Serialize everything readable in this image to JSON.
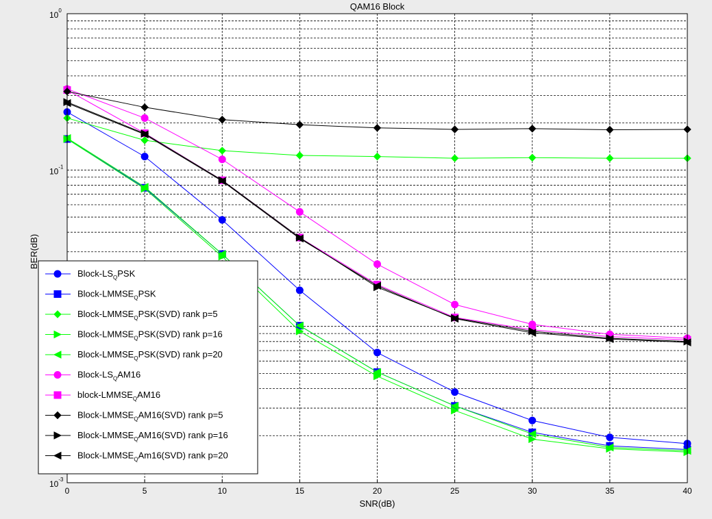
{
  "chart_data": {
    "type": "line",
    "title": "QAM16 Block",
    "xlabel": "SNR(dB)",
    "ylabel": "BER(dB)",
    "yscale": "log",
    "xlim": [
      0,
      40
    ],
    "ylim": [
      0.001,
      1
    ],
    "x_ticks": [
      "0",
      "5",
      "10",
      "15",
      "20",
      "25",
      "30",
      "35",
      "40"
    ],
    "y_ticks": [
      {
        "base": "10",
        "exp": "0"
      },
      {
        "base": "10",
        "exp": "-1"
      },
      {
        "base": "10",
        "exp": "-2"
      },
      {
        "base": "10",
        "exp": "-3"
      }
    ],
    "grid": true,
    "legend_position": "lower-left",
    "x": [
      0,
      5,
      10,
      15,
      20,
      25,
      30,
      35,
      40
    ],
    "series": [
      {
        "label_parts": [
          "Block-LS",
          "Q",
          "PSK"
        ],
        "color": "#0000ff",
        "marker": "circle",
        "values": [
          0.235,
          0.122,
          0.048,
          0.017,
          0.0068,
          0.0038,
          0.0025,
          0.00195,
          0.00178
        ]
      },
      {
        "label_parts": [
          "Block-LMMSE",
          "Q",
          "PSK"
        ],
        "color": "#0000ff",
        "marker": "square",
        "values": [
          0.158,
          0.077,
          0.029,
          0.0101,
          0.0051,
          0.0031,
          0.0021,
          0.00172,
          0.00163
        ]
      },
      {
        "label_parts": [
          "Block-LMMSE",
          "Q",
          "PSK(SVD) rank p=5"
        ],
        "color": "#00ff00",
        "marker": "diamond",
        "values": [
          0.215,
          0.155,
          0.133,
          0.124,
          0.122,
          0.119,
          0.12,
          0.119,
          0.119
        ]
      },
      {
        "label_parts": [
          "Block-LMMSE",
          "Q",
          "PSK(SVD) rank p=16"
        ],
        "color": "#00ff00",
        "marker": "triangle-right",
        "values": [
          0.158,
          0.076,
          0.028,
          0.0093,
          0.0048,
          0.0029,
          0.0019,
          0.00165,
          0.00157
        ]
      },
      {
        "label_parts": [
          "Block-LMMSE",
          "Q",
          "PSK(SVD) rank p=20"
        ],
        "color": "#00ff00",
        "marker": "triangle-left",
        "values": [
          0.16,
          0.078,
          0.029,
          0.0101,
          0.0051,
          0.0031,
          0.00205,
          0.00168,
          0.0016
        ]
      },
      {
        "label_parts": [
          "Block-LS",
          "Q",
          "AM16"
        ],
        "color": "#ff00ff",
        "marker": "circle",
        "values": [
          0.33,
          0.215,
          0.117,
          0.054,
          0.025,
          0.0138,
          0.0103,
          0.0089,
          0.0084
        ]
      },
      {
        "label_parts": [
          "block-LMMSE",
          "Q",
          "AM16"
        ],
        "color": "#ff00ff",
        "marker": "square",
        "values": [
          0.325,
          0.172,
          0.086,
          0.037,
          0.0185,
          0.0114,
          0.0095,
          0.0086,
          0.0082
        ]
      },
      {
        "label_parts": [
          "Block-LMMSE",
          "Q",
          "AM16(SVD) rank p=5"
        ],
        "color": "#000000",
        "marker": "diamond",
        "values": [
          0.318,
          0.252,
          0.21,
          0.195,
          0.186,
          0.182,
          0.184,
          0.181,
          0.182
        ]
      },
      {
        "label_parts": [
          "Block-LMMSE",
          "Q",
          "AM16(SVD) rank p=16"
        ],
        "color": "#000000",
        "marker": "triangle-right",
        "values": [
          0.272,
          0.171,
          0.086,
          0.037,
          0.0178,
          0.0113,
          0.0093,
          0.0084,
          0.008
        ]
      },
      {
        "label_parts": [
          "Block-LMMSE",
          "Q",
          "Am16(SVD) rank p=20"
        ],
        "color": "#000000",
        "marker": "triangle-left",
        "values": [
          0.268,
          0.169,
          0.085,
          0.0365,
          0.0182,
          0.0112,
          0.0091,
          0.0083,
          0.0079
        ]
      }
    ]
  }
}
